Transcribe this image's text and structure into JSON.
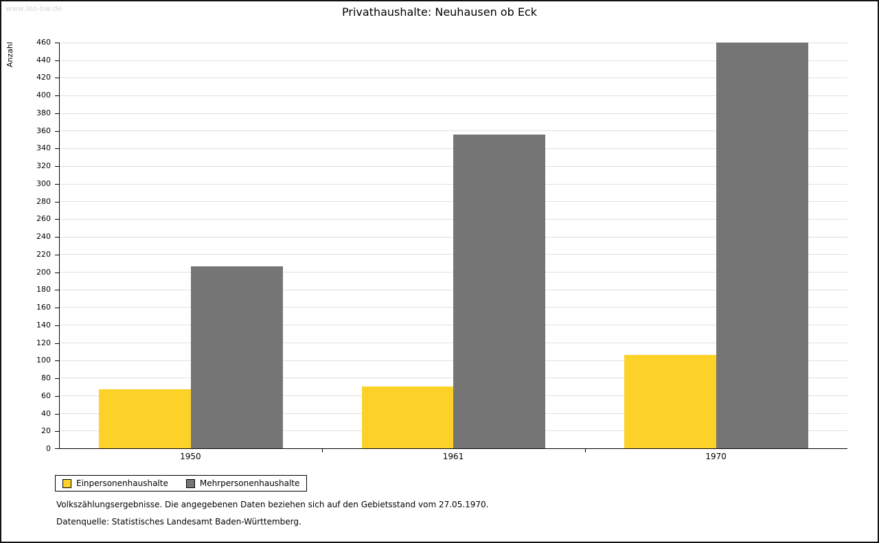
{
  "watermark": "www.leo-bw.de",
  "footnotes": {
    "line1": "Volkszählungsergebnisse. Die angegebenen Daten beziehen sich auf den Gebietsstand vom 27.05.1970.",
    "line2": "Datenquelle: Statistisches Landesamt Baden-Württemberg."
  },
  "chart_data": {
    "type": "bar",
    "title": "Privathaushalte: Neuhausen ob Eck",
    "xlabel": "",
    "ylabel": "Anzahl",
    "categories": [
      "1950",
      "1961",
      "1970"
    ],
    "series": [
      {
        "name": "Einpersonenhaushalte",
        "color": "#fcd228",
        "values": [
          67,
          70,
          106
        ]
      },
      {
        "name": "Mehrpersonenhaushalte",
        "color": "#757575",
        "values": [
          206,
          356,
          460
        ]
      }
    ],
    "ylim": [
      0,
      460
    ],
    "ytick_step": 20,
    "grid": true,
    "legend_position": "bottom-left"
  }
}
